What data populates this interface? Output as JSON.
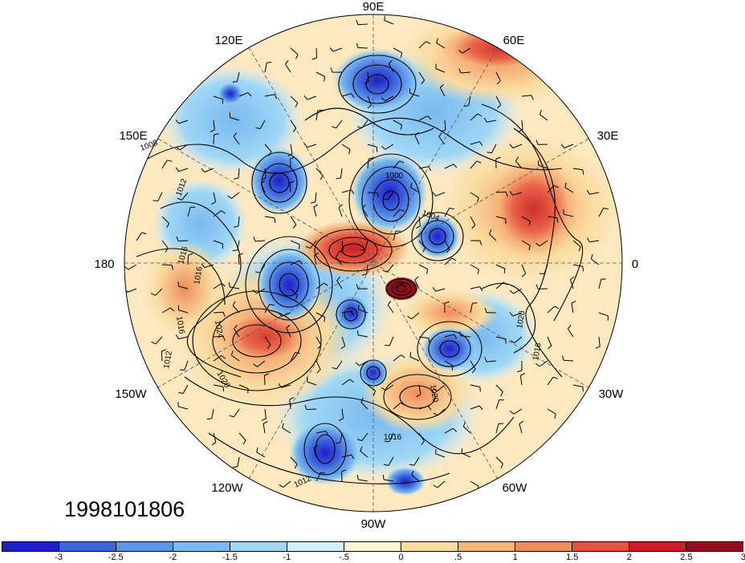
{
  "timestamp": "1998101806",
  "longitude_labels": [
    "90E",
    "60E",
    "30E",
    "0",
    "30W",
    "60W",
    "90W",
    "120W",
    "150W",
    "180",
    "150E",
    "120E"
  ],
  "contour_labels": [
    "1008",
    "1012",
    "1016",
    "1016",
    "1024",
    "1020",
    "1012",
    "1000",
    "1004",
    "1020",
    "1016",
    "1020",
    "1016",
    "1012",
    "1016"
  ],
  "colorbar": {
    "colors": [
      "#1f1fc8",
      "#3c64dc",
      "#5a96e6",
      "#78b9f0",
      "#a0d7f5",
      "#d2f0fa",
      "#fff5d2",
      "#fadca0",
      "#f5b478",
      "#f08c5a",
      "#e6503c",
      "#c81e28",
      "#960a1e"
    ],
    "labels": [
      "-3",
      "-2.5",
      "-2",
      "-1.5",
      "-1",
      "-.5",
      "0",
      ".5",
      "1",
      "1.5",
      "2",
      "2.5",
      "3"
    ]
  },
  "anomaly_colors": {
    "strong_negative": "#2040c8",
    "negative": "#5a96e6",
    "weak_negative": "#a0d7f5",
    "neutral": "#fff5d2",
    "weak_positive": "#fadca0",
    "positive": "#f08c5a",
    "strong_positive": "#d2282d"
  }
}
